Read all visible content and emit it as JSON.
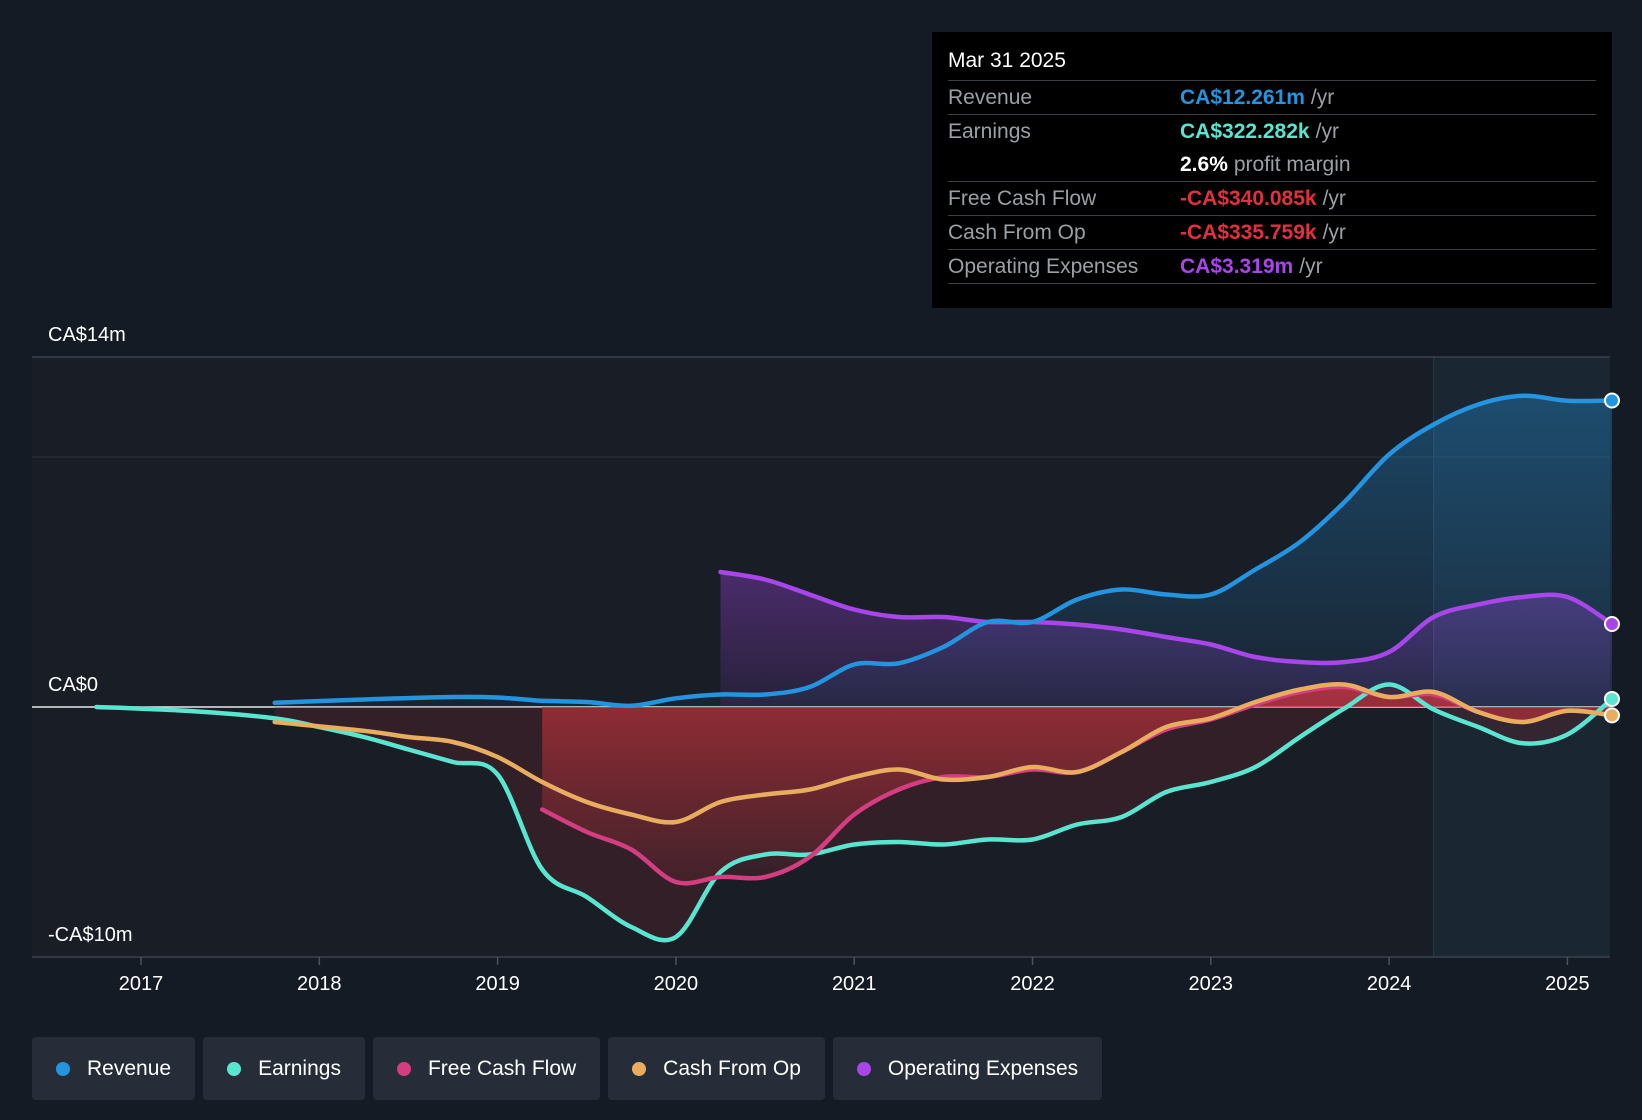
{
  "chart_data": {
    "type": "line",
    "title": "",
    "xlabel": "",
    "ylabel": "",
    "ylim": [
      -10,
      14
    ],
    "y_axis_labels": [
      "CA$14m",
      "CA$0",
      "-CA$10m"
    ],
    "x_ticks": [
      "2017",
      "2018",
      "2019",
      "2020",
      "2021",
      "2022",
      "2023",
      "2024",
      "2025"
    ],
    "x_range": [
      2016.4,
      2025.25
    ],
    "forecast_start": 2024.25,
    "series": [
      {
        "name": "Revenue",
        "key": "revenue",
        "color": "#2394df",
        "points": [
          [
            2017.75,
            0.17
          ],
          [
            2018.25,
            0.3
          ],
          [
            2018.75,
            0.4
          ],
          [
            2019.0,
            0.38
          ],
          [
            2019.25,
            0.25
          ],
          [
            2019.5,
            0.2
          ],
          [
            2019.75,
            0.05
          ],
          [
            2020.0,
            0.35
          ],
          [
            2020.25,
            0.5
          ],
          [
            2020.5,
            0.5
          ],
          [
            2020.75,
            0.8
          ],
          [
            2021.0,
            1.7
          ],
          [
            2021.25,
            1.75
          ],
          [
            2021.5,
            2.4
          ],
          [
            2021.75,
            3.4
          ],
          [
            2022.0,
            3.4
          ],
          [
            2022.25,
            4.3
          ],
          [
            2022.5,
            4.7
          ],
          [
            2022.75,
            4.5
          ],
          [
            2023.0,
            4.5
          ],
          [
            2023.25,
            5.5
          ],
          [
            2023.5,
            6.6
          ],
          [
            2023.75,
            8.2
          ],
          [
            2024.0,
            10.1
          ],
          [
            2024.25,
            11.3
          ],
          [
            2024.5,
            12.1
          ],
          [
            2024.75,
            12.45
          ],
          [
            2025.0,
            12.25
          ],
          [
            2025.25,
            12.261
          ]
        ]
      },
      {
        "name": "Earnings",
        "key": "earnings",
        "color": "#58e6d0",
        "points": [
          [
            2016.75,
            0.0
          ],
          [
            2017.25,
            -0.15
          ],
          [
            2017.75,
            -0.45
          ],
          [
            2018.0,
            -0.8
          ],
          [
            2018.25,
            -1.2
          ],
          [
            2018.5,
            -1.7
          ],
          [
            2018.75,
            -2.2
          ],
          [
            2019.0,
            -2.7
          ],
          [
            2019.25,
            -6.5
          ],
          [
            2019.5,
            -7.6
          ],
          [
            2019.75,
            -8.8
          ],
          [
            2020.0,
            -9.2
          ],
          [
            2020.25,
            -6.6
          ],
          [
            2020.5,
            -5.9
          ],
          [
            2020.75,
            -5.9
          ],
          [
            2021.0,
            -5.5
          ],
          [
            2021.25,
            -5.4
          ],
          [
            2021.5,
            -5.5
          ],
          [
            2021.75,
            -5.3
          ],
          [
            2022.0,
            -5.3
          ],
          [
            2022.25,
            -4.7
          ],
          [
            2022.5,
            -4.4
          ],
          [
            2022.75,
            -3.4
          ],
          [
            2023.0,
            -3.0
          ],
          [
            2023.25,
            -2.4
          ],
          [
            2023.5,
            -1.2
          ],
          [
            2023.75,
            -0.05
          ],
          [
            2024.0,
            0.9
          ],
          [
            2024.25,
            -0.1
          ],
          [
            2024.5,
            -0.8
          ],
          [
            2024.75,
            -1.45
          ],
          [
            2025.0,
            -1.1
          ],
          [
            2025.25,
            0.322
          ]
        ]
      },
      {
        "name": "Free Cash Flow",
        "key": "fcf",
        "color": "#d43d7f",
        "points": [
          [
            2019.25,
            -4.1
          ],
          [
            2019.5,
            -5.0
          ],
          [
            2019.75,
            -5.7
          ],
          [
            2020.0,
            -7.0
          ],
          [
            2020.25,
            -6.8
          ],
          [
            2020.5,
            -6.8
          ],
          [
            2020.75,
            -6.0
          ],
          [
            2021.0,
            -4.3
          ],
          [
            2021.25,
            -3.3
          ],
          [
            2021.5,
            -2.8
          ],
          [
            2021.75,
            -2.8
          ],
          [
            2022.0,
            -2.5
          ],
          [
            2022.25,
            -2.6
          ],
          [
            2022.5,
            -1.8
          ],
          [
            2022.75,
            -0.9
          ],
          [
            2023.0,
            -0.5
          ],
          [
            2023.25,
            0.1
          ],
          [
            2023.5,
            0.6
          ],
          [
            2023.75,
            0.8
          ],
          [
            2024.0,
            0.4
          ],
          [
            2024.25,
            0.5
          ],
          [
            2024.5,
            -0.2
          ],
          [
            2024.75,
            -0.6
          ],
          [
            2025.0,
            -0.15
          ],
          [
            2025.25,
            -0.34
          ]
        ]
      },
      {
        "name": "Cash From Op",
        "key": "cfo",
        "color": "#e8ad5f",
        "points": [
          [
            2017.75,
            -0.6
          ],
          [
            2018.25,
            -0.95
          ],
          [
            2018.5,
            -1.2
          ],
          [
            2018.75,
            -1.4
          ],
          [
            2019.0,
            -2.0
          ],
          [
            2019.25,
            -3.0
          ],
          [
            2019.5,
            -3.8
          ],
          [
            2019.75,
            -4.3
          ],
          [
            2020.0,
            -4.6
          ],
          [
            2020.25,
            -3.8
          ],
          [
            2020.5,
            -3.5
          ],
          [
            2020.75,
            -3.3
          ],
          [
            2021.0,
            -2.8
          ],
          [
            2021.25,
            -2.5
          ],
          [
            2021.5,
            -2.9
          ],
          [
            2021.75,
            -2.8
          ],
          [
            2022.0,
            -2.4
          ],
          [
            2022.25,
            -2.6
          ],
          [
            2022.5,
            -1.8
          ],
          [
            2022.75,
            -0.8
          ],
          [
            2023.0,
            -0.45
          ],
          [
            2023.25,
            0.2
          ],
          [
            2023.5,
            0.7
          ],
          [
            2023.75,
            0.9
          ],
          [
            2024.0,
            0.4
          ],
          [
            2024.25,
            0.6
          ],
          [
            2024.5,
            -0.2
          ],
          [
            2024.75,
            -0.6
          ],
          [
            2025.0,
            -0.15
          ],
          [
            2025.25,
            -0.336
          ]
        ]
      },
      {
        "name": "Operating Expenses",
        "key": "opex",
        "color": "#a846ea",
        "points": [
          [
            2020.25,
            5.4
          ],
          [
            2020.5,
            5.1
          ],
          [
            2020.75,
            4.5
          ],
          [
            2021.0,
            3.9
          ],
          [
            2021.25,
            3.6
          ],
          [
            2021.5,
            3.6
          ],
          [
            2021.75,
            3.4
          ],
          [
            2022.0,
            3.4
          ],
          [
            2022.25,
            3.3
          ],
          [
            2022.5,
            3.1
          ],
          [
            2022.75,
            2.8
          ],
          [
            2023.0,
            2.5
          ],
          [
            2023.25,
            2.0
          ],
          [
            2023.5,
            1.8
          ],
          [
            2023.75,
            1.8
          ],
          [
            2024.0,
            2.2
          ],
          [
            2024.25,
            3.6
          ],
          [
            2024.5,
            4.1
          ],
          [
            2024.75,
            4.4
          ],
          [
            2025.0,
            4.4
          ],
          [
            2025.25,
            3.319
          ]
        ]
      }
    ]
  },
  "tooltip": {
    "date": "Mar 31 2025",
    "rows": [
      {
        "label": "Revenue",
        "value": "CA$12.261m",
        "unit": "/yr",
        "color": "#2394df"
      },
      {
        "label": "Earnings",
        "value": "CA$322.282k",
        "unit": "/yr",
        "color": "#58e6d0"
      },
      {
        "label": "",
        "value": "2.6%",
        "unit": "profit margin",
        "color": "#ffffff"
      },
      {
        "label": "Free Cash Flow",
        "value": "-CA$340.085k",
        "unit": "/yr",
        "color": "#e3303d"
      },
      {
        "label": "Cash From Op",
        "value": "-CA$335.759k",
        "unit": "/yr",
        "color": "#e3303d"
      },
      {
        "label": "Operating Expenses",
        "value": "CA$3.319m",
        "unit": "/yr",
        "color": "#a846ea"
      }
    ]
  },
  "legend": [
    {
      "label": "Revenue",
      "color": "#2394df"
    },
    {
      "label": "Earnings",
      "color": "#58e6d0"
    },
    {
      "label": "Free Cash Flow",
      "color": "#d43d7f"
    },
    {
      "label": "Cash From Op",
      "color": "#e8ad5f"
    },
    {
      "label": "Operating Expenses",
      "color": "#a846ea"
    }
  ]
}
